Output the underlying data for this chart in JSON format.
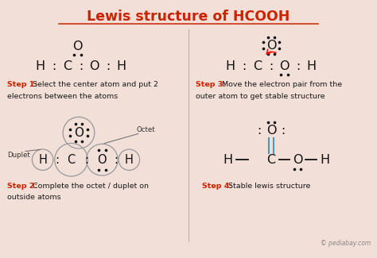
{
  "title": "Lewis structure of HCOOH",
  "title_color": "#cc2200",
  "bg_color": "#f2dfd8",
  "divider_color": "#c8b0a8",
  "step_red": "#cc2200",
  "step_black": "#1a1a1a",
  "bond_blue": "#4499cc",
  "watermark": "© pediabay.com",
  "step1_bold": "Step 1:",
  "step1_rest": " Select the center atom and put 2\nelectrons between the atoms",
  "step2_bold": "Step 2:",
  "step2_rest": " Complete the octet / duplet on\noutside atoms",
  "step3_bold": "Step 3:",
  "step3_rest": " Move the electron pair from the\nouter atom to get stable structure",
  "step4_bold": "Step 4:",
  "step4_rest": " Stable lewis structure"
}
